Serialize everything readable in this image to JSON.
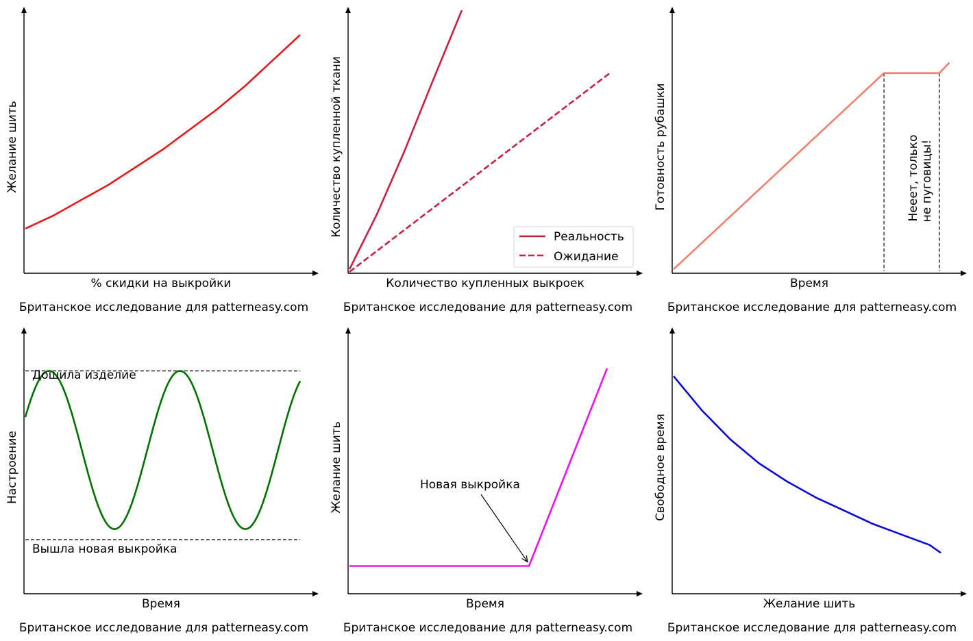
{
  "caption": "Британское исследование для patterneasy.com",
  "chart_data": [
    {
      "type": "line",
      "xlabel": "% скидки на выкройки",
      "ylabel": "Желание шить",
      "caption": "Британское исследование для patterneasy.com",
      "xlim": [
        0,
        1
      ],
      "ylim": [
        0,
        1
      ],
      "series": [
        {
          "name": "desire",
          "color": "#e31a1c",
          "style": "solid",
          "x": [
            0,
            0.1,
            0.2,
            0.3,
            0.4,
            0.5,
            0.6,
            0.7,
            0.8,
            0.9,
            1.0
          ],
          "y": [
            0.17,
            0.22,
            0.28,
            0.34,
            0.41,
            0.48,
            0.56,
            0.64,
            0.73,
            0.83,
            0.93
          ]
        }
      ],
      "annotations": []
    },
    {
      "type": "line",
      "xlabel": "Количество купленных выкроек",
      "ylabel": "Количество купленной ткани",
      "caption": "Британское исследование для patterneasy.com",
      "xlim": [
        0,
        1
      ],
      "ylim": [
        0,
        1
      ],
      "legend": {
        "placement": "lower-right",
        "entries": [
          "Реальность",
          "Ожидание"
        ]
      },
      "series": [
        {
          "name": "Реальность",
          "color": "#c8203f",
          "style": "solid",
          "x": [
            0,
            0.1,
            0.2,
            0.3,
            0.41
          ],
          "y": [
            0.01,
            0.22,
            0.46,
            0.72,
            1.0
          ]
        },
        {
          "name": "Ожидание",
          "color": "#c8203f",
          "style": "dashed",
          "x": [
            0,
            0.95
          ],
          "y": [
            0.0,
            0.76
          ]
        }
      ],
      "annotations": []
    },
    {
      "type": "line",
      "xlabel": "Время",
      "ylabel": "Готовность рубашки",
      "caption": "Британское исследование для patterneasy.com",
      "xlim": [
        0,
        1
      ],
      "ylim": [
        0,
        1
      ],
      "series": [
        {
          "name": "progress",
          "color": "#f08070",
          "style": "solid",
          "x": [
            0,
            0.74,
            0.935,
            0.97
          ],
          "y": [
            0.01,
            0.76,
            0.76,
            0.8
          ]
        }
      ],
      "vlines": [
        0.74,
        0.935
      ],
      "annotations": [
        {
          "text_lines": [
            "Нееет, только",
            "не пуговицы!"
          ],
          "rotation": 90
        }
      ]
    },
    {
      "type": "line",
      "xlabel": "Время",
      "ylabel": "Настроение",
      "caption": "Британское исследование для patterneasy.com",
      "xlim": [
        0,
        1
      ],
      "ylim": [
        0,
        1
      ],
      "series": [
        {
          "name": "mood",
          "color": "#007000",
          "style": "sine",
          "amplitude": 0.3,
          "offset": 0.54,
          "cycles": 2.1,
          "phase_start": 0.0
        }
      ],
      "hlines": [
        {
          "y": 0.84,
          "label": "Дошила изделие"
        },
        {
          "y": 0.2,
          "label": "Вышла новая выкройка"
        }
      ],
      "annotations": []
    },
    {
      "type": "line",
      "xlabel": "Время",
      "ylabel": "Желание шить",
      "caption": "Британское исследование для patterneasy.com",
      "xlim": [
        0,
        1
      ],
      "ylim": [
        0,
        1
      ],
      "series": [
        {
          "name": "desire",
          "color": "#ee11ee",
          "style": "solid",
          "x": [
            0,
            0.655,
            0.94
          ],
          "y": [
            0.1,
            0.1,
            0.85
          ]
        }
      ],
      "annotations": [
        {
          "text": "Новая выкройка",
          "arrow_to": [
            0.655,
            0.11
          ]
        }
      ]
    },
    {
      "type": "line",
      "xlabel": "Желание шить",
      "ylabel": "Свободное время",
      "caption": "Британское исследование для patterneasy.com",
      "xlim": [
        0,
        1
      ],
      "ylim": [
        0,
        1
      ],
      "series": [
        {
          "name": "free_time",
          "color": "#0a0ad0",
          "style": "solid",
          "x": [
            0,
            0.1,
            0.2,
            0.3,
            0.4,
            0.5,
            0.6,
            0.7,
            0.8,
            0.9,
            0.94
          ],
          "y": [
            0.82,
            0.69,
            0.58,
            0.49,
            0.42,
            0.36,
            0.31,
            0.26,
            0.22,
            0.18,
            0.15
          ]
        }
      ],
      "annotations": []
    }
  ]
}
